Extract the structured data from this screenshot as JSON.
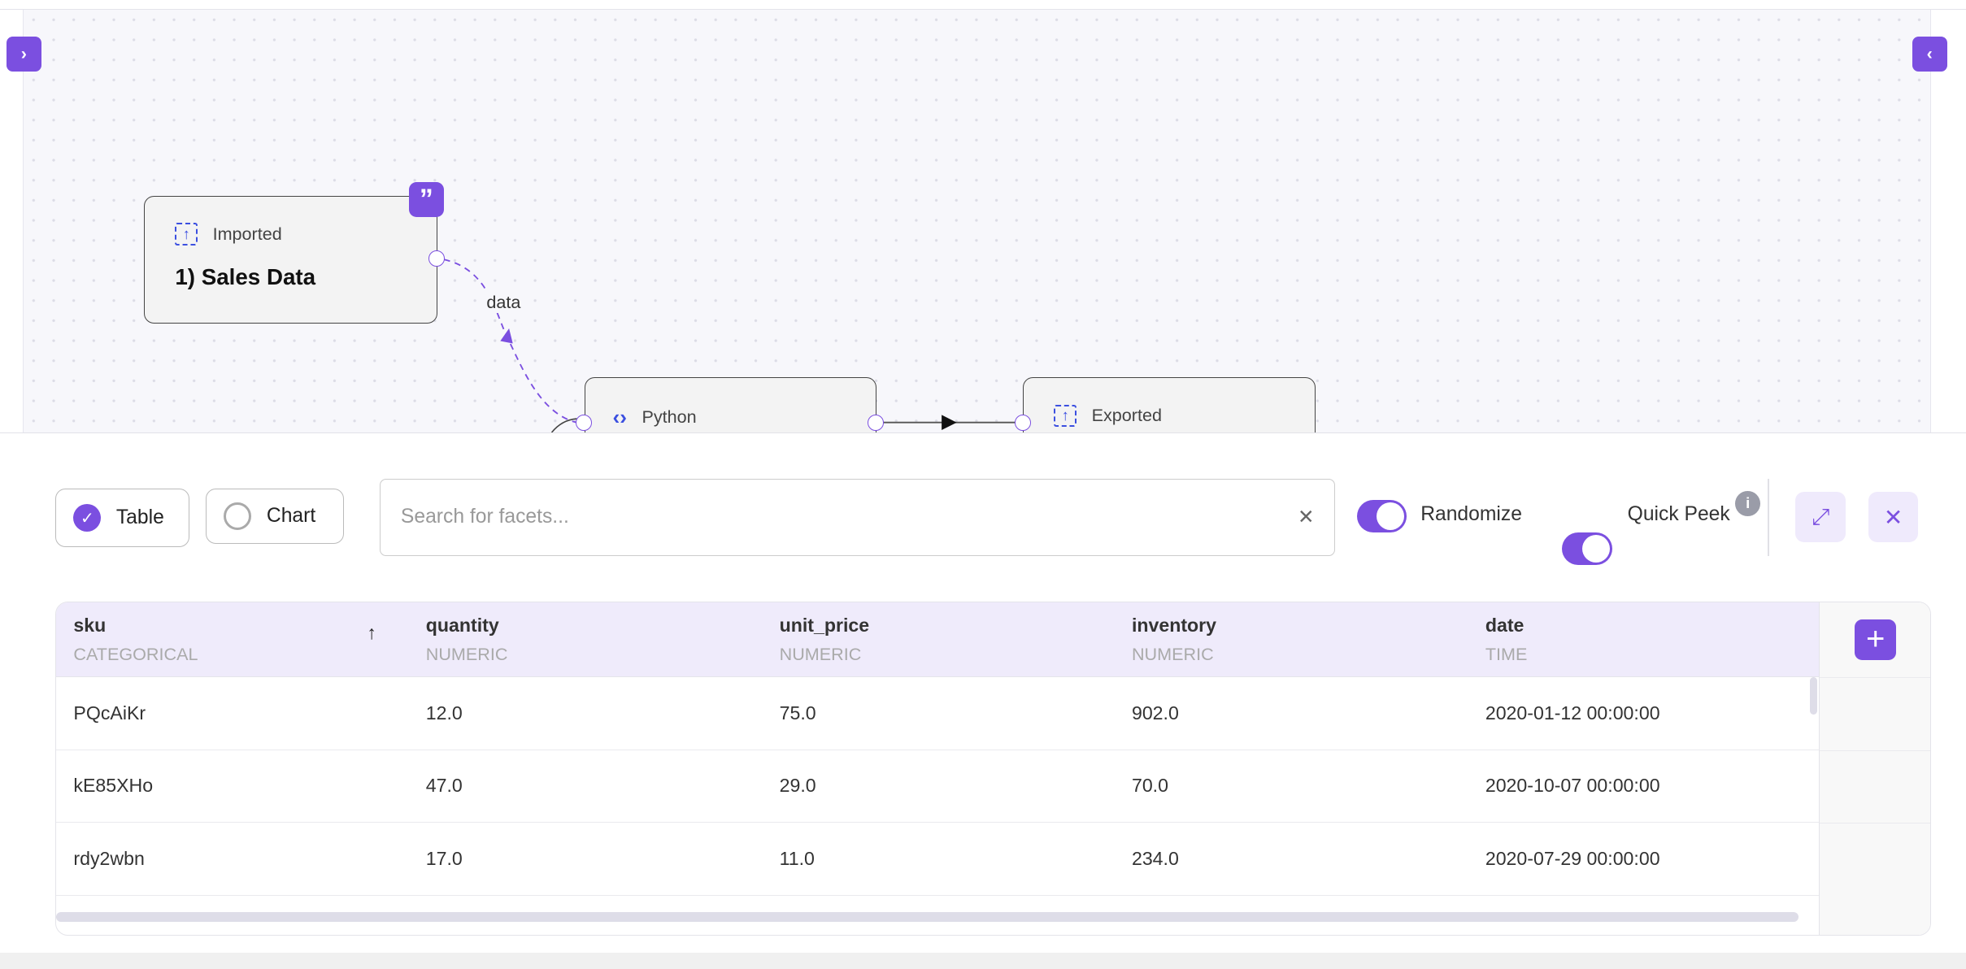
{
  "canvas": {
    "left_toggle_icon": "chevron-right",
    "right_toggle_icon": "chevron-left",
    "nodes": [
      {
        "type": "Imported",
        "title": "1) Sales Data",
        "icon": "upload-dashed-icon",
        "badge_icon": "quote-icon"
      },
      {
        "type": "Python",
        "icon": "code-brackets-icon"
      },
      {
        "type": "Exported",
        "icon": "upload-dashed-icon"
      }
    ],
    "edge_label": "data"
  },
  "panel": {
    "modes": [
      {
        "label": "Table",
        "selected": true
      },
      {
        "label": "Chart",
        "selected": false
      }
    ],
    "search": {
      "placeholder": "Search for facets...",
      "value": ""
    },
    "toggles": [
      {
        "label": "Randomize",
        "on": true
      },
      {
        "label": "Quick Peek",
        "on": true
      }
    ],
    "accent": "#7b4fe0"
  },
  "table": {
    "columns": [
      {
        "name": "sku",
        "type": "CATEGORICAL",
        "sort": "ascending"
      },
      {
        "name": "quantity",
        "type": "NUMERIC"
      },
      {
        "name": "unit_price",
        "type": "NUMERIC"
      },
      {
        "name": "inventory",
        "type": "NUMERIC"
      },
      {
        "name": "date",
        "type": "TIME"
      }
    ],
    "rows": [
      [
        "PQcAiKr",
        "12.0",
        "75.0",
        "902.0",
        "2020-01-12 00:00:00"
      ],
      [
        "kE85XHo",
        "47.0",
        "29.0",
        "70.0",
        "2020-10-07 00:00:00"
      ],
      [
        "rdy2wbn",
        "17.0",
        "11.0",
        "234.0",
        "2020-07-29 00:00:00"
      ]
    ]
  }
}
